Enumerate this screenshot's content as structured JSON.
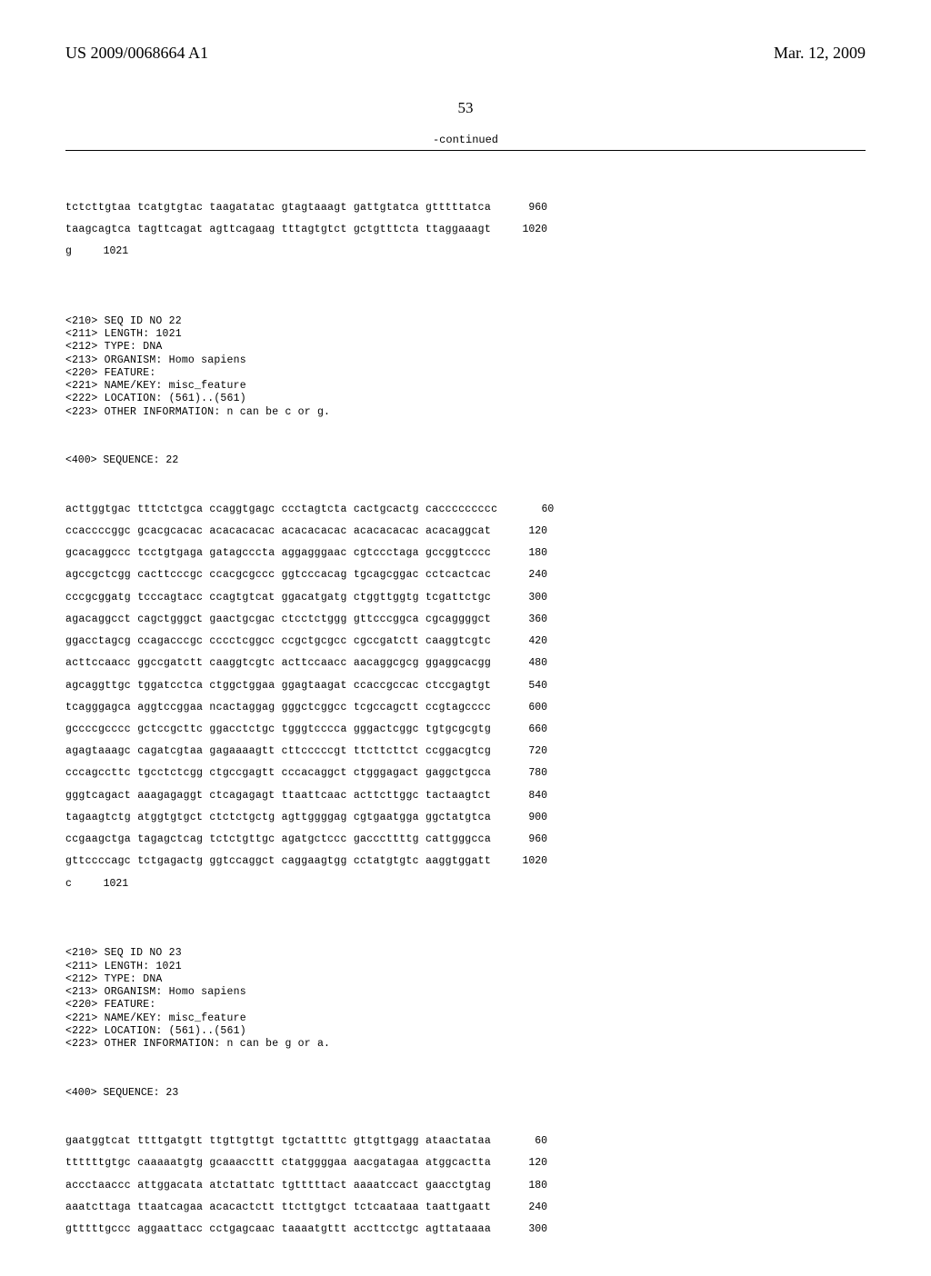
{
  "header": {
    "pub_no": "US 2009/0068664 A1",
    "pub_date": "Mar. 12, 2009"
  },
  "page_number": "53",
  "continued_label": "-continued",
  "tail_seq_21": {
    "lines": [
      {
        "text": "tctcttgtaa tcatgtgtac taagatatac gtagtaaagt gattgtatca gtttttatca",
        "num": "960"
      },
      {
        "text": "taagcagtca tagttcagat agttcagaag tttagtgtct gctgtttcta ttaggaaagt",
        "num": "1020"
      },
      {
        "text": "g",
        "num": "1021"
      }
    ]
  },
  "seq22": {
    "meta": [
      "<210> SEQ ID NO 22",
      "<211> LENGTH: 1021",
      "<212> TYPE: DNA",
      "<213> ORGANISM: Homo sapiens",
      "<220> FEATURE:",
      "<221> NAME/KEY: misc_feature",
      "<222> LOCATION: (561)..(561)",
      "<223> OTHER INFORMATION: n can be c or g."
    ],
    "heading": "<400> SEQUENCE: 22",
    "lines": [
      {
        "text": "acttggtgac tttctctgca ccaggtgagc ccctagtcta cactgcactg caccccccccc",
        "num": "60"
      },
      {
        "text": "ccaccccggc gcacgcacac acacacacac acacacacac acacacacac acacaggcat",
        "num": "120"
      },
      {
        "text": "gcacaggccc tcctgtgaga gatagcccta aggagggaac cgtccctaga gccggtcccc",
        "num": "180"
      },
      {
        "text": "agccgctcgg cacttcccgc ccacgcgccc ggtcccacag tgcagcggac cctcactcac",
        "num": "240"
      },
      {
        "text": "cccgcggatg tcccagtacc ccagtgtcat ggacatgatg ctggttggtg tcgattctgc",
        "num": "300"
      },
      {
        "text": "agacaggcct cagctgggct gaactgcgac ctcctctggg gttcccggca cgcaggggct",
        "num": "360"
      },
      {
        "text": "ggacctagcg ccagacccgc cccctcggcc ccgctgcgcc cgccgatctt caaggtcgtc",
        "num": "420"
      },
      {
        "text": "acttccaacc ggccgatctt caaggtcgtc acttccaacc aacaggcgcg ggaggcacgg",
        "num": "480"
      },
      {
        "text": "agcaggttgc tggatcctca ctggctggaa ggagtaagat ccaccgccac ctccgagtgt",
        "num": "540"
      },
      {
        "text": "tcagggagca aggtccggaa ncactaggag gggctcggcc tcgccagctt ccgtagcccc",
        "num": "600"
      },
      {
        "text": "gccccgcccc gctccgcttc ggacctctgc tgggtcccca gggactcggc tgtgcgcgtg",
        "num": "660"
      },
      {
        "text": "agagtaaagc cagatcgtaa gagaaaagtt cttcccccgt ttcttcttct ccggacgtcg",
        "num": "720"
      },
      {
        "text": "cccagccttc tgcctctcgg ctgccgagtt cccacaggct ctgggagact gaggctgcca",
        "num": "780"
      },
      {
        "text": "gggtcagact aaagagaggt ctcagagagt ttaattcaac acttcttggc tactaagtct",
        "num": "840"
      },
      {
        "text": "tagaagtctg atggtgtgct ctctctgctg agttggggag cgtgaatgga ggctatgtca",
        "num": "900"
      },
      {
        "text": "ccgaagctga tagagctcag tctctgttgc agatgctccc gacccttttg cattgggcca",
        "num": "960"
      },
      {
        "text": "gttccccagc tctgagactg ggtccaggct caggaagtgg cctatgtgtc aaggtggatt",
        "num": "1020"
      },
      {
        "text": "c",
        "num": "1021"
      }
    ]
  },
  "seq23": {
    "meta": [
      "<210> SEQ ID NO 23",
      "<211> LENGTH: 1021",
      "<212> TYPE: DNA",
      "<213> ORGANISM: Homo sapiens",
      "<220> FEATURE:",
      "<221> NAME/KEY: misc_feature",
      "<222> LOCATION: (561)..(561)",
      "<223> OTHER INFORMATION: n can be g or a."
    ],
    "heading": "<400> SEQUENCE: 23",
    "lines": [
      {
        "text": "gaatggtcat ttttgatgtt ttgttgttgt tgctattttc gttgttgagg ataactataa",
        "num": "60"
      },
      {
        "text": "ttttttgtgc caaaaatgtg gcaaaccttt ctatggggaa aacgatagaa atggcactta",
        "num": "120"
      },
      {
        "text": "accctaaccc attggacata atctattatc tgtttttact aaaatccact gaacctgtag",
        "num": "180"
      },
      {
        "text": "aaatcttaga ttaatcagaa acacactctt ttcttgtgct tctcaataaa taattgaatt",
        "num": "240"
      },
      {
        "text": "gtttttgccc aggaattacc cctgagcaac taaaatgttt accttcctgc agttataaaa",
        "num": "300"
      }
    ]
  }
}
